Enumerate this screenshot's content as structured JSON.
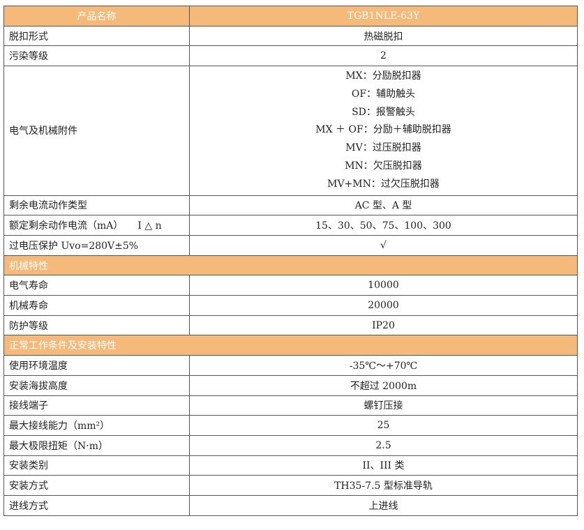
{
  "header": {
    "name_label": "产品名称",
    "model": "TGB1NLE-63Y"
  },
  "rows1": [
    {
      "label": "脱扣形式",
      "value": "热磁脱扣"
    },
    {
      "label": "污染等级",
      "value": "2"
    }
  ],
  "accessories": {
    "label": "电气及机械附件",
    "items": [
      "MX：分励脱扣器",
      "OF：辅助触头",
      "SD：报警触头",
      "MX ＋ OF：分励＋辅助脱扣器",
      "MV：过压脱扣器",
      "MN：欠压脱扣器",
      "MV+MN：过欠压脱扣器"
    ]
  },
  "rows2": [
    {
      "label": "剩余电流动作类型",
      "value": "AC 型、A 型"
    },
    {
      "label": "额定剩余动作电流（mA）　　I △ n",
      "value": "15、30、50、75、100、300"
    },
    {
      "label": "过电压保护 Uvo=280V±5%",
      "value": "√"
    }
  ],
  "section_mechanical": "机械特性",
  "rows3": [
    {
      "label": "电气寿命",
      "value": "10000"
    },
    {
      "label": "机械寿命",
      "value": "20000"
    },
    {
      "label": "防护等级",
      "value": "IP20"
    }
  ],
  "section_conditions": "正常工作条件及安装特性",
  "rows4": [
    {
      "label": "使用环境温度",
      "value": "-35℃～+70℃"
    },
    {
      "label": "安装海拔高度",
      "value": "不超过 2000m"
    },
    {
      "label": "接线端子",
      "value": "螺钉压接"
    },
    {
      "label": "最大接线能力（mm²）",
      "value": "25"
    },
    {
      "label": "最大极限扭矩（N·m）",
      "value": "2.5"
    },
    {
      "label": "安装类别",
      "value": "II、III 类"
    },
    {
      "label": "安装方式",
      "value": "TH35-7.5 型标准导轨"
    },
    {
      "label": "进线方式",
      "value": "上进线"
    }
  ],
  "colors": {
    "header_bg": "#F5BA7A",
    "header_text": "#FFFFFF"
  }
}
